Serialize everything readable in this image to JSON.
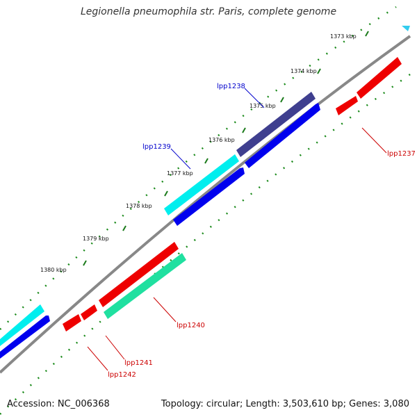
{
  "title": "Legionella pneumophila str. Paris, complete genome",
  "accession": "Accession: NC_006368",
  "topology": "Topology: circular; Length: 3,503,610 bp; Genes: 3,080",
  "colors": {
    "backbone": "#808080",
    "ticks": "#1a7a1a",
    "red": "#ee0000",
    "blue": "#0000ee",
    "cyan": "#00eeee",
    "navy": "#3f3f8f",
    "teal": "#20e0a0",
    "label_blue": "#0000cc",
    "label_red": "#cc0000"
  },
  "scale": {
    "unit": "kbp",
    "ticks": [
      "1373 kbp",
      "1374 kbp",
      "1375 kbp",
      "1376 kbp",
      "1377 kbp",
      "1378 kbp",
      "1379 kbp",
      "1380 kbp"
    ]
  },
  "genes": [
    {
      "id": "lpp1237",
      "label": "lpp1237",
      "color": "red",
      "strand": "minus"
    },
    {
      "id": "lpp1238",
      "label": "lpp1238",
      "color": "navy",
      "strand": "plus"
    },
    {
      "id": "lpp1239",
      "label": "lpp1239",
      "color": "cyan",
      "strand": "plus"
    },
    {
      "id": "lpp1240",
      "label": "lpp1240",
      "color": "teal",
      "strand": "minus"
    },
    {
      "id": "lpp1241",
      "label": "lpp1241",
      "color": "red",
      "strand": "minus"
    },
    {
      "id": "lpp1242",
      "label": "lpp1242",
      "color": "red",
      "strand": "minus"
    }
  ]
}
